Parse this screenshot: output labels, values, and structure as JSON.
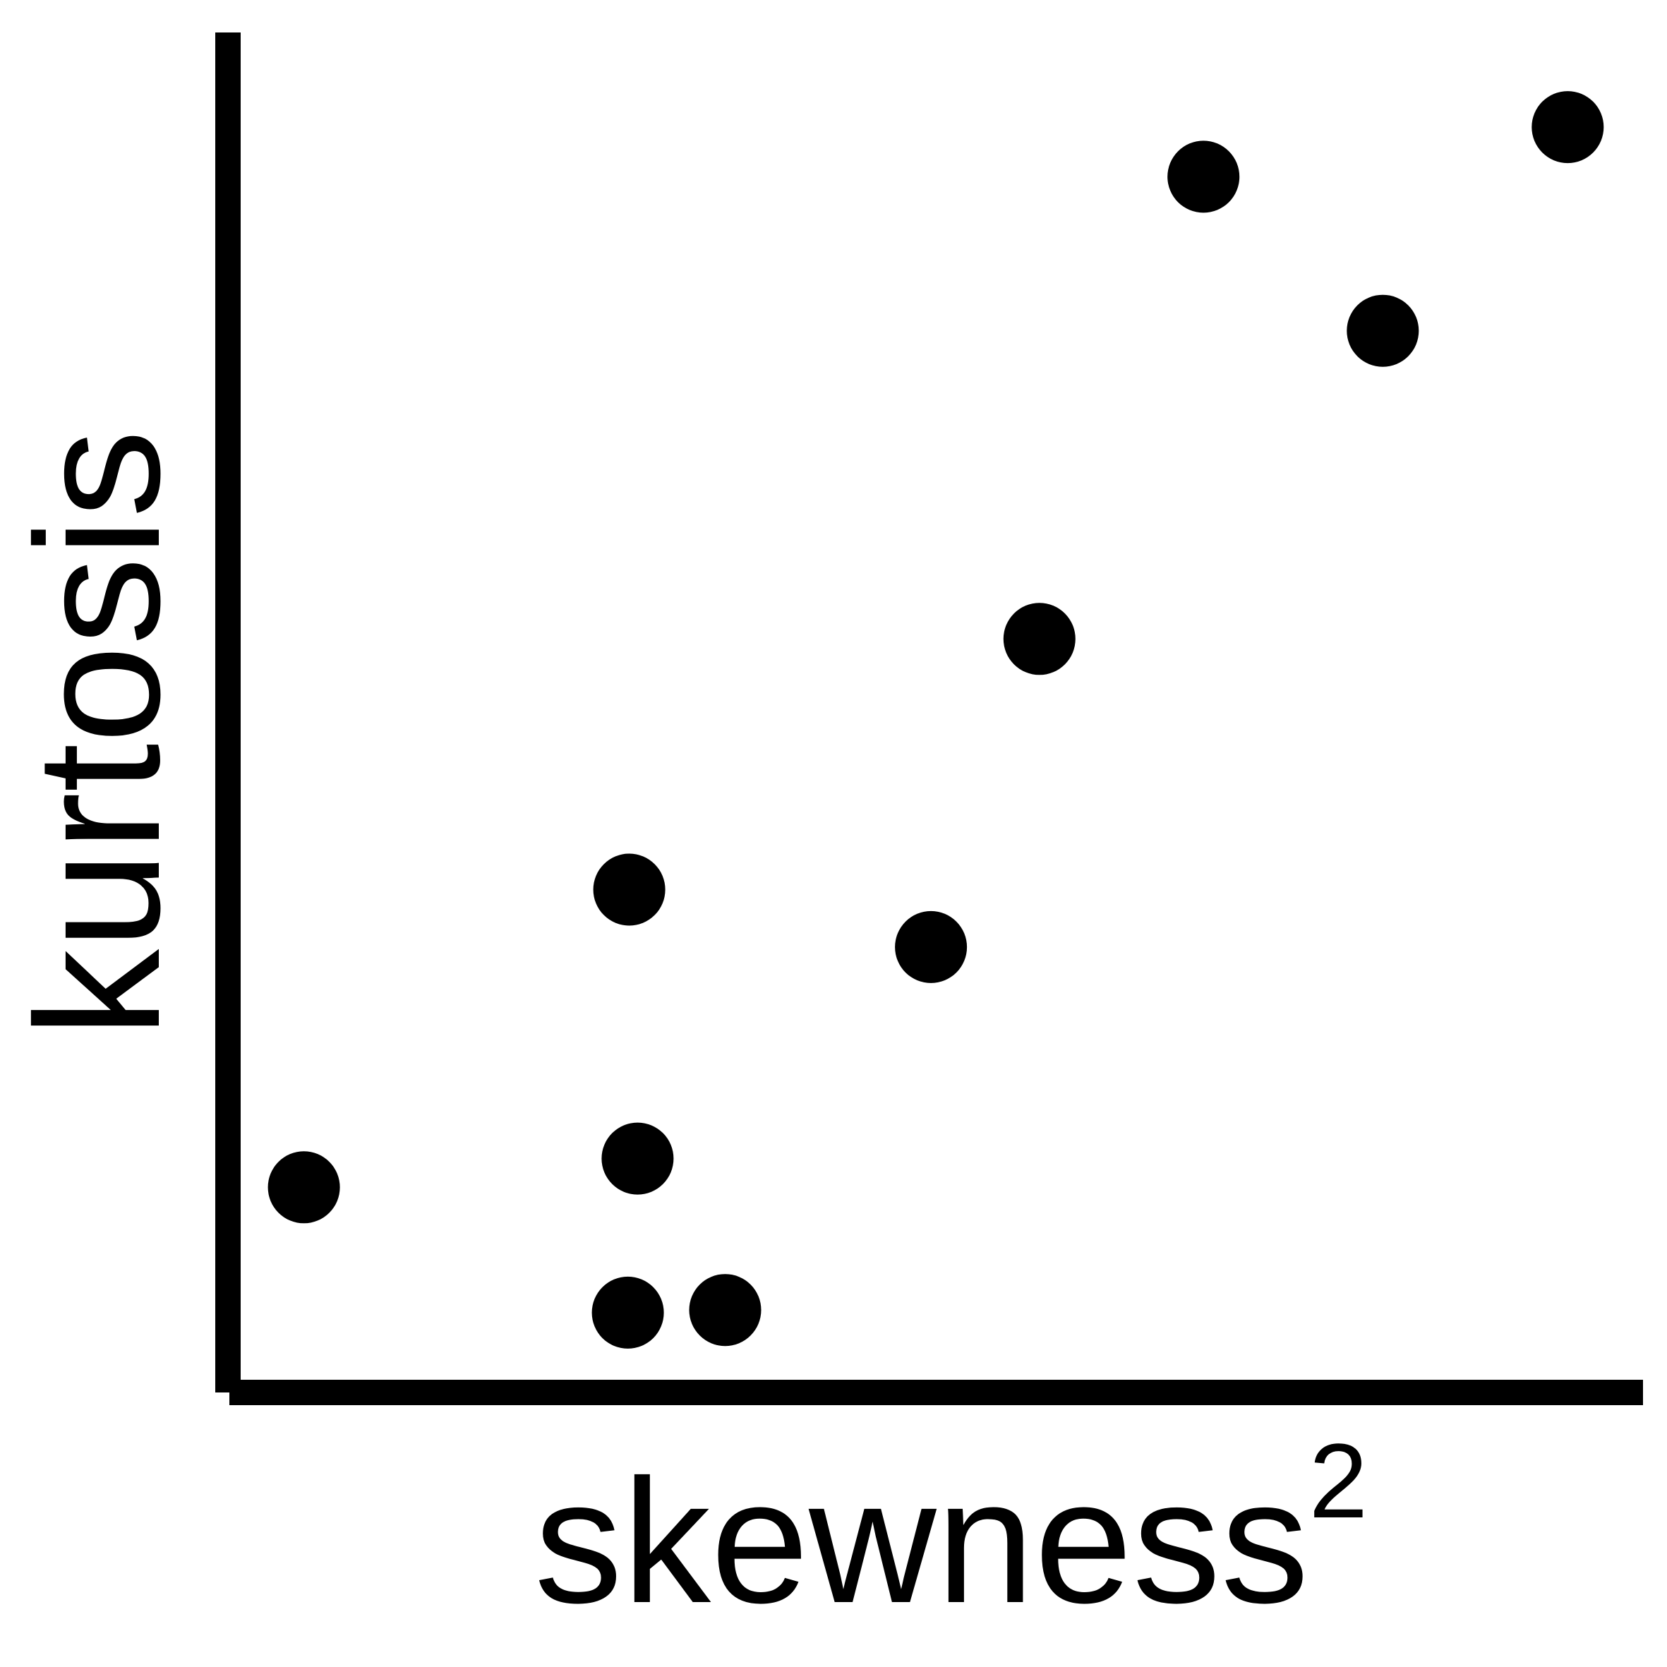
{
  "chart_data": {
    "type": "scatter",
    "xlabel": "skewness",
    "xlabel_superscript": "2",
    "ylabel": "kurtosis",
    "xlim": [
      0,
      1
    ],
    "ylim": [
      0,
      1
    ],
    "grid": false,
    "ticks": false,
    "marker_color": "#000000",
    "axis_color": "#000000",
    "points": [
      {
        "x": 0.046,
        "y": 0.142
      },
      {
        "x": 0.279,
        "y": 0.046
      },
      {
        "x": 0.28,
        "y": 0.37
      },
      {
        "x": 0.286,
        "y": 0.164
      },
      {
        "x": 0.349,
        "y": 0.048
      },
      {
        "x": 0.497,
        "y": 0.326
      },
      {
        "x": 0.575,
        "y": 0.562
      },
      {
        "x": 0.693,
        "y": 0.916
      },
      {
        "x": 0.822,
        "y": 0.798
      },
      {
        "x": 0.955,
        "y": 0.954
      }
    ]
  }
}
